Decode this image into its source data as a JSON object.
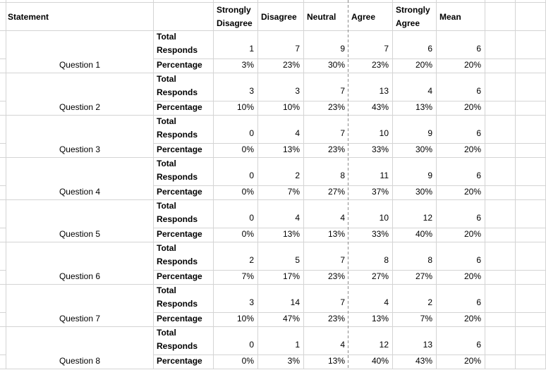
{
  "sheet": {
    "statement_header": "Statement",
    "column_headers": [
      "Strongly Disagree",
      "Disagree",
      "Neutral",
      "Agree",
      "Strongly Agree",
      "Mean"
    ],
    "row_labels": {
      "total": "Total Responds",
      "percentage": "Percentage"
    },
    "questions": [
      {
        "label": "Question 1",
        "responds": [
          "1",
          "7",
          "9",
          "7",
          "6",
          "6"
        ],
        "percentage": [
          "3%",
          "23%",
          "30%",
          "23%",
          "20%",
          "20%"
        ]
      },
      {
        "label": "Question 2",
        "responds": [
          "3",
          "3",
          "7",
          "13",
          "4",
          "6"
        ],
        "percentage": [
          "10%",
          "10%",
          "23%",
          "43%",
          "13%",
          "20%"
        ]
      },
      {
        "label": "Question 3",
        "responds": [
          "0",
          "4",
          "7",
          "10",
          "9",
          "6"
        ],
        "percentage": [
          "0%",
          "13%",
          "23%",
          "33%",
          "30%",
          "20%"
        ]
      },
      {
        "label": "Question 4",
        "responds": [
          "0",
          "2",
          "8",
          "11",
          "9",
          "6"
        ],
        "percentage": [
          "0%",
          "7%",
          "27%",
          "37%",
          "30%",
          "20%"
        ]
      },
      {
        "label": "Question 5",
        "responds": [
          "0",
          "4",
          "4",
          "10",
          "12",
          "6"
        ],
        "percentage": [
          "0%",
          "13%",
          "13%",
          "33%",
          "40%",
          "20%"
        ]
      },
      {
        "label": "Question 6",
        "responds": [
          "2",
          "5",
          "7",
          "8",
          "8",
          "6"
        ],
        "percentage": [
          "7%",
          "17%",
          "23%",
          "27%",
          "27%",
          "20%"
        ]
      },
      {
        "label": "Question 7",
        "responds": [
          "3",
          "14",
          "7",
          "4",
          "2",
          "6"
        ],
        "percentage": [
          "10%",
          "47%",
          "23%",
          "13%",
          "7%",
          "20%"
        ]
      },
      {
        "label": "Question 8",
        "responds": [
          "0",
          "1",
          "4",
          "12",
          "13",
          "6"
        ],
        "percentage": [
          "0%",
          "3%",
          "13%",
          "40%",
          "43%",
          "20%"
        ]
      }
    ],
    "colors": {
      "background": "#ffffff",
      "gridline": "#d4d4d4",
      "page_break_dash": "#8c8c8c",
      "text": "#000000"
    }
  }
}
